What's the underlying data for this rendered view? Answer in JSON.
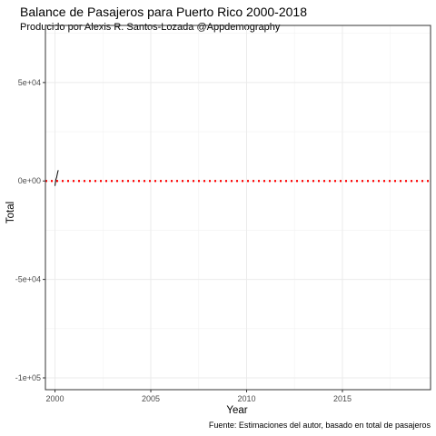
{
  "chart_data": {
    "type": "line",
    "title": "Balance de Pasajeros para Puerto Rico 2000-2018",
    "subtitle": "Producido por Alexis R. Santos-Lozada @Appdemography",
    "caption": "Fuente: Estimaciones del autor, basado en total de pasajeros",
    "xlabel": "Year",
    "ylabel": "Total",
    "xlim": [
      1999.5,
      2019.6
    ],
    "ylim": [
      -106000,
      79000
    ],
    "x_ticks": [
      2000,
      2005,
      2010,
      2015
    ],
    "x_tick_labels": [
      "2000",
      "2005",
      "2010",
      "2015"
    ],
    "y_ticks": [
      -100000,
      -50000,
      0,
      50000
    ],
    "y_tick_labels": [
      "-1e+05",
      "-5e+04",
      "0e+00",
      "5e+04"
    ],
    "grid": true,
    "series": [
      {
        "x": [
          2000.0,
          2000.04,
          2000.09,
          2000.13,
          2000.17
        ],
        "values": [
          -2500,
          500,
          2000,
          4000,
          5500
        ],
        "color": "#000000"
      }
    ],
    "reference_line": {
      "y": 0,
      "style": "dotted",
      "color": "#ff0000"
    }
  }
}
